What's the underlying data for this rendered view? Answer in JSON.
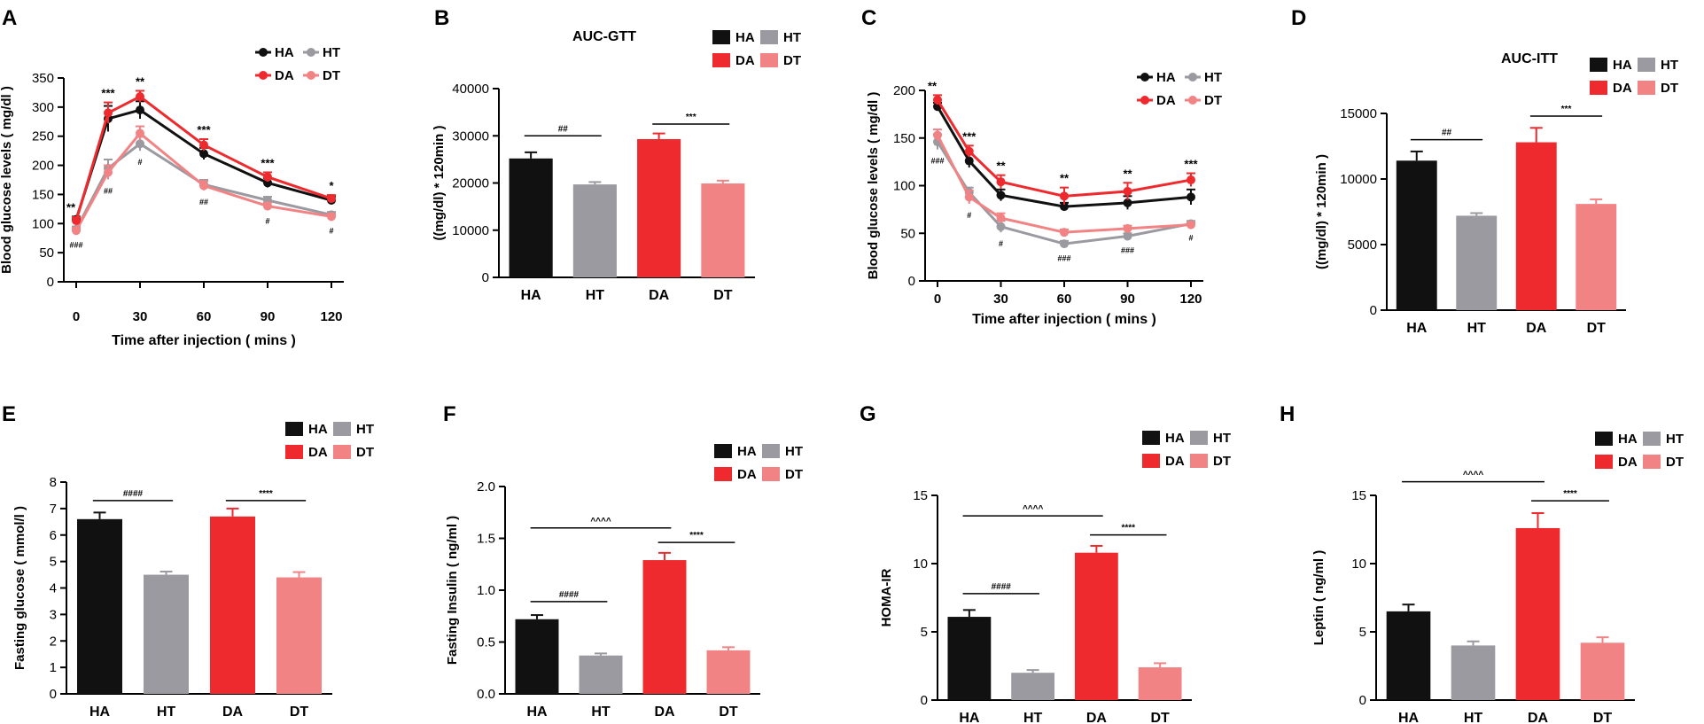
{
  "figure": {
    "colors": {
      "HA": "#111111",
      "HT": "#9a9aa0",
      "DA": "#ee2a2e",
      "DT": "#f28385",
      "axis": "#000000"
    },
    "legend_labels": [
      "HA",
      "HT",
      "DA",
      "DT"
    ]
  },
  "chart_data": [
    {
      "id": "A",
      "panel_label": "A",
      "type": "line",
      "title": "",
      "xlabel": "Time after injection ( mins )",
      "ylabel": "Blood glucose levels ( mg/dl )",
      "x": [
        0,
        15,
        30,
        60,
        90,
        120
      ],
      "xticks": [
        0,
        30,
        60,
        90,
        120
      ],
      "xlim": [
        0,
        120
      ],
      "ylim": [
        0,
        350
      ],
      "yticks": [
        0,
        50,
        100,
        150,
        200,
        250,
        300,
        350
      ],
      "series": [
        {
          "name": "HA",
          "values": [
            107,
            280,
            295,
            220,
            170,
            140
          ],
          "errors": [
            5,
            22,
            15,
            10,
            8,
            6
          ]
        },
        {
          "name": "HT",
          "values": [
            90,
            195,
            237,
            167,
            140,
            115
          ],
          "errors": [
            5,
            15,
            12,
            8,
            6,
            5
          ]
        },
        {
          "name": "DA",
          "values": [
            105,
            290,
            318,
            235,
            180,
            143
          ],
          "errors": [
            6,
            18,
            10,
            10,
            8,
            6
          ]
        },
        {
          "name": "DT",
          "values": [
            88,
            188,
            255,
            165,
            130,
            112
          ],
          "errors": [
            5,
            12,
            12,
            8,
            6,
            5
          ]
        }
      ],
      "annotations_above": [
        "**",
        "***",
        "**",
        "***",
        "***",
        "*"
      ],
      "annotations_below": [
        "###",
        "##",
        "#",
        "##",
        "#",
        "#"
      ]
    },
    {
      "id": "B",
      "panel_label": "B",
      "type": "bar",
      "title": "AUC-GTT",
      "xlabel": "",
      "ylabel": "((mg/dl) * 120min )",
      "categories": [
        "HA",
        "HT",
        "DA",
        "DT"
      ],
      "values": [
        25200,
        19700,
        29300,
        19900
      ],
      "errors": [
        1300,
        500,
        1200,
        600
      ],
      "ylim": [
        0,
        40000
      ],
      "yticks": [
        0,
        10000,
        20000,
        30000,
        40000
      ],
      "brackets": [
        {
          "from": 0,
          "to": 1,
          "label": "##",
          "at": 30000
        },
        {
          "from": 2,
          "to": 3,
          "label": "***",
          "at": 32500
        }
      ]
    },
    {
      "id": "C",
      "panel_label": "C",
      "type": "line",
      "title": "",
      "xlabel": "Time after injection ( mins )",
      "ylabel": "Blood glucose levels ( mg/dl )",
      "x": [
        0,
        15,
        30,
        60,
        90,
        120
      ],
      "xticks": [
        0,
        30,
        60,
        90,
        120
      ],
      "xlim": [
        0,
        120
      ],
      "ylim": [
        0,
        200
      ],
      "yticks": [
        0,
        50,
        100,
        150,
        200
      ],
      "series": [
        {
          "name": "HA",
          "values": [
            183,
            126,
            90,
            78,
            82,
            88
          ],
          "errors": [
            4,
            7,
            6,
            4,
            7,
            8
          ]
        },
        {
          "name": "HT",
          "values": [
            146,
            93,
            57,
            39,
            47,
            60
          ],
          "errors": [
            8,
            5,
            6,
            3,
            3,
            3
          ]
        },
        {
          "name": "DA",
          "values": [
            190,
            136,
            104,
            89,
            94,
            106
          ],
          "errors": [
            5,
            6,
            7,
            9,
            9,
            7
          ]
        },
        {
          "name": "DT",
          "values": [
            153,
            88,
            66,
            51,
            55,
            59
          ],
          "errors": [
            6,
            7,
            5,
            3,
            3,
            2
          ]
        }
      ],
      "annotations_above": [
        "**",
        "***",
        "**",
        "**",
        "**",
        "***"
      ],
      "annotations_below": [
        "###",
        "#",
        "#",
        "###",
        "###",
        "#"
      ]
    },
    {
      "id": "D",
      "panel_label": "D",
      "type": "bar",
      "title": "AUC-ITT",
      "xlabel": "",
      "ylabel": "((mg/dl) * 120min )",
      "categories": [
        "HA",
        "HT",
        "DA",
        "DT"
      ],
      "values": [
        11400,
        7200,
        12800,
        8100
      ],
      "errors": [
        700,
        200,
        1100,
        350
      ],
      "ylim": [
        0,
        15000
      ],
      "yticks": [
        0,
        5000,
        10000,
        15000
      ],
      "brackets": [
        {
          "from": 0,
          "to": 1,
          "label": "##",
          "at": 13000
        },
        {
          "from": 2,
          "to": 3,
          "label": "***",
          "at": 14800
        }
      ]
    },
    {
      "id": "E",
      "panel_label": "E",
      "type": "bar",
      "title": "",
      "xlabel": "",
      "ylabel": "Fasting glucose ( mmol/l )",
      "categories": [
        "HA",
        "HT",
        "DA",
        "DT"
      ],
      "values": [
        6.6,
        4.5,
        6.7,
        4.4
      ],
      "errors": [
        0.25,
        0.12,
        0.3,
        0.2
      ],
      "ylim": [
        0,
        8
      ],
      "yticks": [
        0,
        1,
        2,
        3,
        4,
        5,
        6,
        7,
        8
      ],
      "brackets": [
        {
          "from": 0,
          "to": 1,
          "label": "####",
          "at": 7.3
        },
        {
          "from": 2,
          "to": 3,
          "label": "****",
          "at": 7.3
        }
      ]
    },
    {
      "id": "F",
      "panel_label": "F",
      "type": "bar",
      "title": "",
      "xlabel": "",
      "ylabel": "Fasting Insulin ( ng/ml )",
      "categories": [
        "HA",
        "HT",
        "DA",
        "DT"
      ],
      "values": [
        0.72,
        0.37,
        1.29,
        0.42
      ],
      "errors": [
        0.04,
        0.02,
        0.07,
        0.03
      ],
      "ylim": [
        0,
        2.0
      ],
      "yticks": [
        0.0,
        0.5,
        1.0,
        1.5,
        2.0
      ],
      "brackets": [
        {
          "from": 0,
          "to": 1,
          "label": "####",
          "at": 0.89
        },
        {
          "from": 0,
          "to": 2,
          "label": "^^^^",
          "at": 1.6
        },
        {
          "from": 2,
          "to": 3,
          "label": "****",
          "at": 1.46
        }
      ]
    },
    {
      "id": "G",
      "panel_label": "G",
      "type": "bar",
      "title": "",
      "xlabel": "",
      "ylabel": "HOMA-IR",
      "categories": [
        "HA",
        "HT",
        "DA",
        "DT"
      ],
      "values": [
        6.1,
        2.0,
        10.8,
        2.4
      ],
      "errors": [
        0.5,
        0.2,
        0.5,
        0.3
      ],
      "ylim": [
        0,
        15
      ],
      "yticks": [
        0,
        5,
        10,
        15
      ],
      "brackets": [
        {
          "from": 0,
          "to": 1,
          "label": "####",
          "at": 7.8
        },
        {
          "from": 0,
          "to": 2,
          "label": "^^^^",
          "at": 13.5
        },
        {
          "from": 2,
          "to": 3,
          "label": "****",
          "at": 12.1
        }
      ]
    },
    {
      "id": "H",
      "panel_label": "H",
      "type": "bar",
      "title": "",
      "xlabel": "",
      "ylabel": "Leptin ( ng/ml )",
      "categories": [
        "HA",
        "HT",
        "DA",
        "DT"
      ],
      "values": [
        6.5,
        4.0,
        12.6,
        4.2
      ],
      "errors": [
        0.5,
        0.3,
        1.1,
        0.4
      ],
      "ylim": [
        0,
        15
      ],
      "yticks": [
        0,
        5,
        10,
        15
      ],
      "brackets": [
        {
          "from": 0,
          "to": 2,
          "label": "^^^^",
          "at": 16.0
        },
        {
          "from": 2,
          "to": 3,
          "label": "****",
          "at": 14.6
        }
      ]
    }
  ]
}
